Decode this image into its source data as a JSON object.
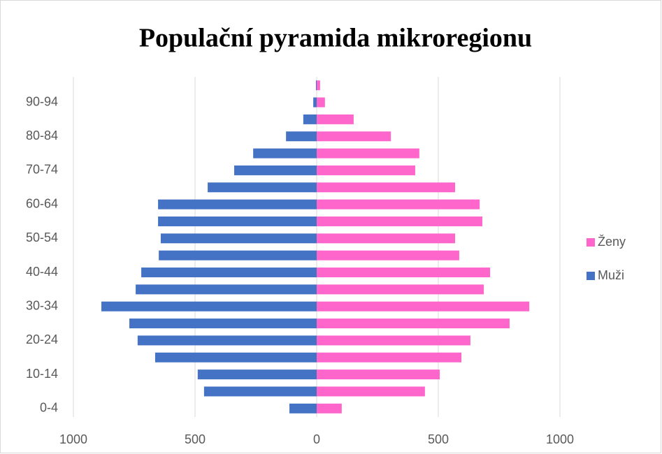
{
  "chart_data": {
    "type": "pyramid",
    "title": "Populační pyramida mikroregionu",
    "categories": [
      "0-4",
      null,
      "10-14",
      null,
      "20-24",
      null,
      "30-34",
      null,
      "40-44",
      null,
      "50-54",
      null,
      "60-64",
      null,
      "70-74",
      null,
      "80-84",
      null,
      "90-94",
      null
    ],
    "series": [
      {
        "name": "Muži",
        "color": "#4472c4",
        "values": [
          112,
          463,
          489,
          664,
          736,
          770,
          885,
          744,
          721,
          649,
          641,
          652,
          652,
          448,
          339,
          261,
          126,
          55,
          14,
          3
        ]
      },
      {
        "name": "Ženy",
        "color": "#ff66cc",
        "values": [
          103,
          445,
          506,
          595,
          632,
          793,
          874,
          687,
          713,
          586,
          569,
          681,
          670,
          569,
          405,
          422,
          305,
          152,
          34,
          14
        ]
      }
    ],
    "xlim": [
      -1000,
      1000
    ],
    "xticks": [
      {
        "value": -1000,
        "label": "1000"
      },
      {
        "value": -500,
        "label": "500"
      },
      0,
      500,
      1000
    ],
    "grid": true,
    "legend": "right"
  }
}
